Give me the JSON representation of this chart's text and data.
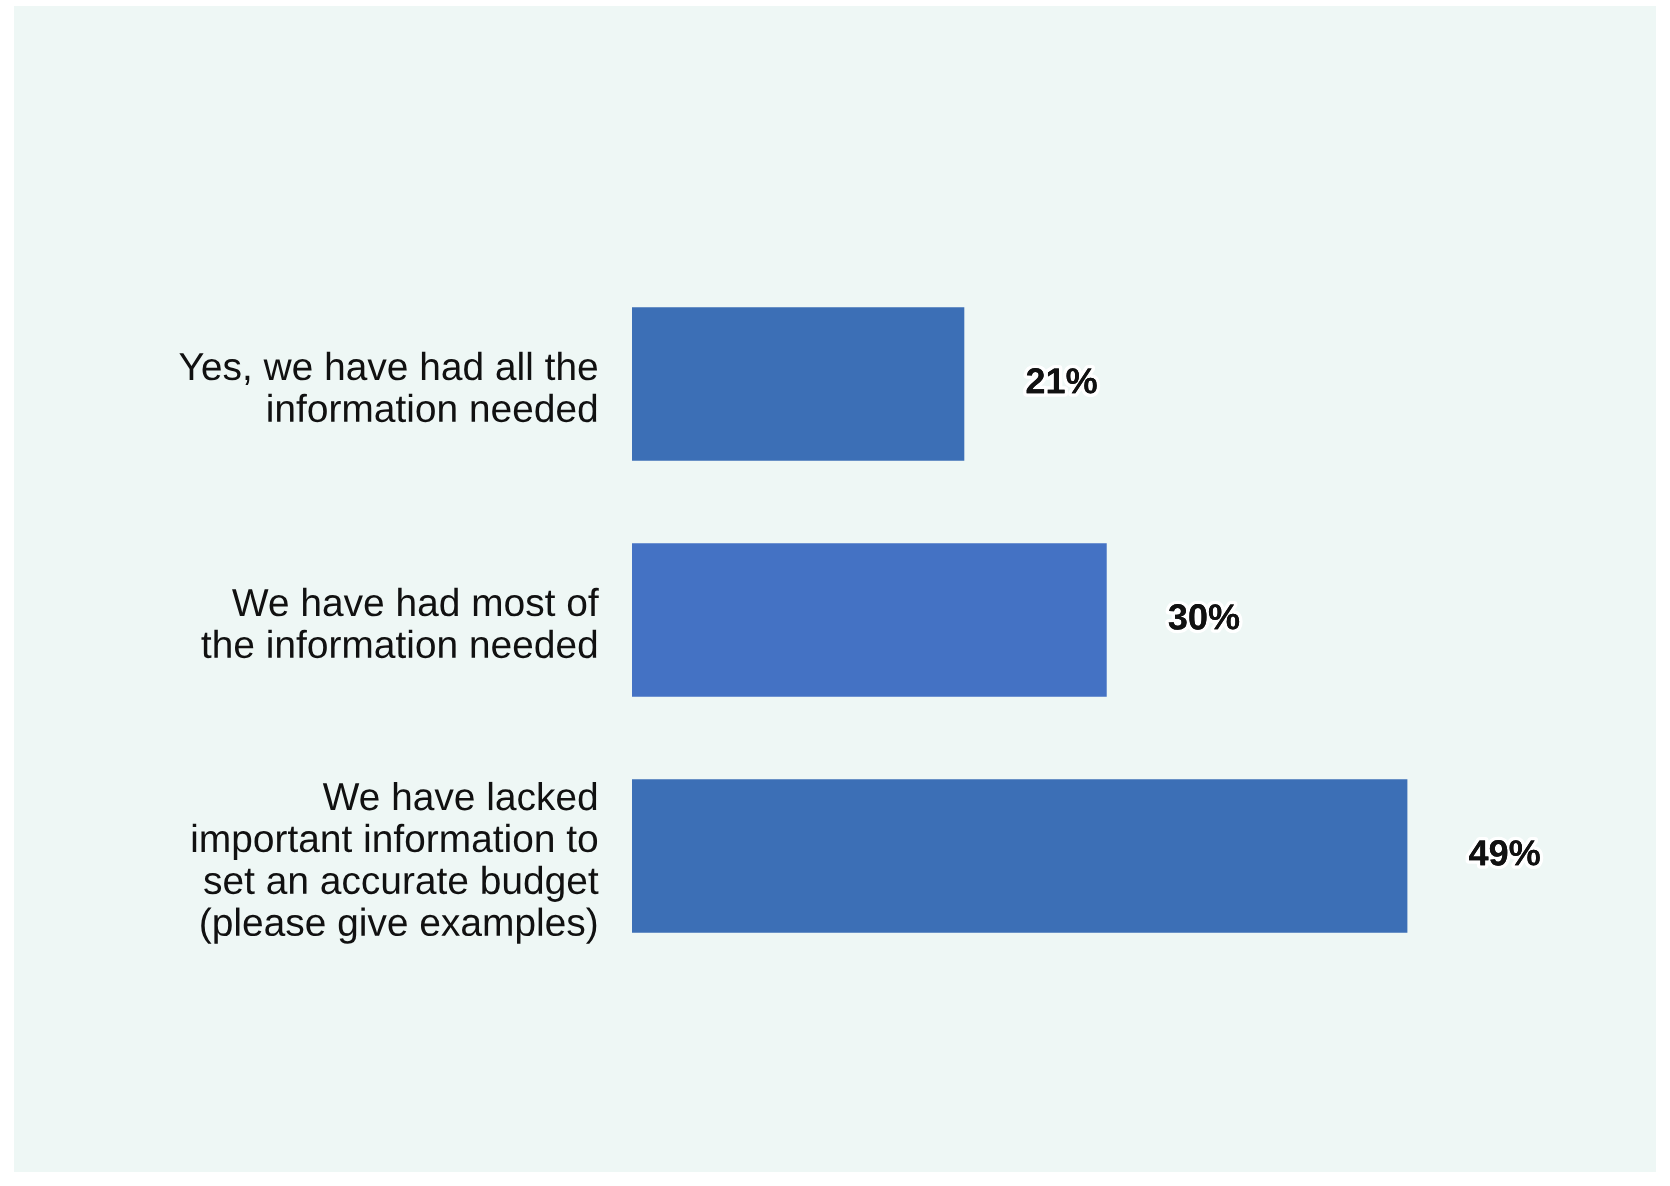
{
  "chart_data": {
    "type": "bar",
    "orientation": "horizontal",
    "categories": [
      "Yes, we have had all the\ninformation needed",
      "We have had most of\nthe information needed",
      "We have lacked\nimportant information to\nset an accurate budget\n(please give examples)"
    ],
    "values": [
      21,
      30,
      49
    ],
    "colors": [
      "#3c6fb6",
      "#4472c4",
      "#3c6fb6"
    ],
    "value_labels": [
      "21%",
      "30%",
      "49%"
    ],
    "grid": false,
    "legend": false,
    "tick_labels": "y"
  }
}
